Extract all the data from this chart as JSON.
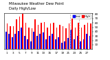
{
  "title1": "Milwaukee Weather Dew Point",
  "title2": "Daily High/Low",
  "background_color": "#ffffff",
  "bar_width": 0.38,
  "days": [
    1,
    2,
    3,
    4,
    5,
    6,
    7,
    8,
    9,
    10,
    11,
    12,
    13,
    14,
    15,
    16,
    17,
    18,
    19,
    20,
    21,
    22,
    23,
    24,
    25,
    26,
    27,
    28
  ],
  "high": [
    58,
    52,
    52,
    68,
    75,
    80,
    60,
    50,
    48,
    68,
    55,
    60,
    62,
    50,
    58,
    60,
    50,
    55,
    52,
    48,
    58,
    70,
    50,
    60,
    50,
    55,
    60,
    58
  ],
  "low": [
    40,
    35,
    28,
    35,
    42,
    50,
    30,
    22,
    18,
    40,
    30,
    35,
    38,
    22,
    30,
    35,
    22,
    28,
    15,
    18,
    25,
    45,
    22,
    30,
    18,
    22,
    35,
    30
  ],
  "high_color": "#ff0000",
  "low_color": "#0000ff",
  "ylim": [
    0,
    82
  ],
  "yticks": [
    10,
    20,
    30,
    40,
    50,
    60,
    70,
    80
  ],
  "ytick_labels": [
    "10",
    "20",
    "30",
    "40",
    "50",
    "60",
    "70",
    "80"
  ],
  "dividers": [
    20.5,
    23.5
  ],
  "legend_labels": [
    "Low",
    "High"
  ],
  "xtick_every": 2,
  "title_fontsize": 3.8,
  "tick_fontsize": 3.0,
  "legend_fontsize": 2.8
}
